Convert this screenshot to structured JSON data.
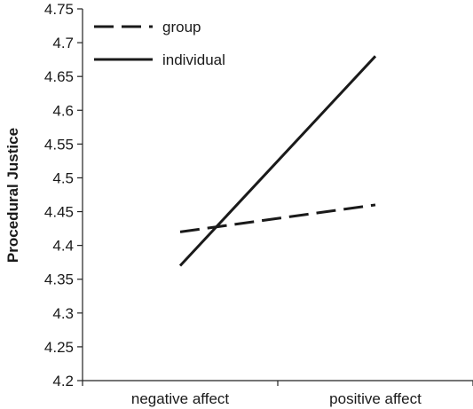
{
  "chart_data": {
    "type": "line",
    "title": "",
    "xlabel": "",
    "ylabel": "Procedural Justice",
    "categories": [
      "negative affect",
      "positive affect"
    ],
    "ylim": [
      4.2,
      4.75
    ],
    "yticks": [
      "4.2",
      "4.25",
      "4.3",
      "4.35",
      "4.4",
      "4.45",
      "4.5",
      "4.55",
      "4.6",
      "4.65",
      "4.7",
      "4.75"
    ],
    "grid": false,
    "legend_position": "top-left",
    "series": [
      {
        "name": "group",
        "style": "dashed",
        "color": "#1a1a1a",
        "values": [
          4.42,
          4.46
        ]
      },
      {
        "name": "individual",
        "style": "solid",
        "color": "#1a1a1a",
        "values": [
          4.37,
          4.68
        ]
      }
    ]
  }
}
